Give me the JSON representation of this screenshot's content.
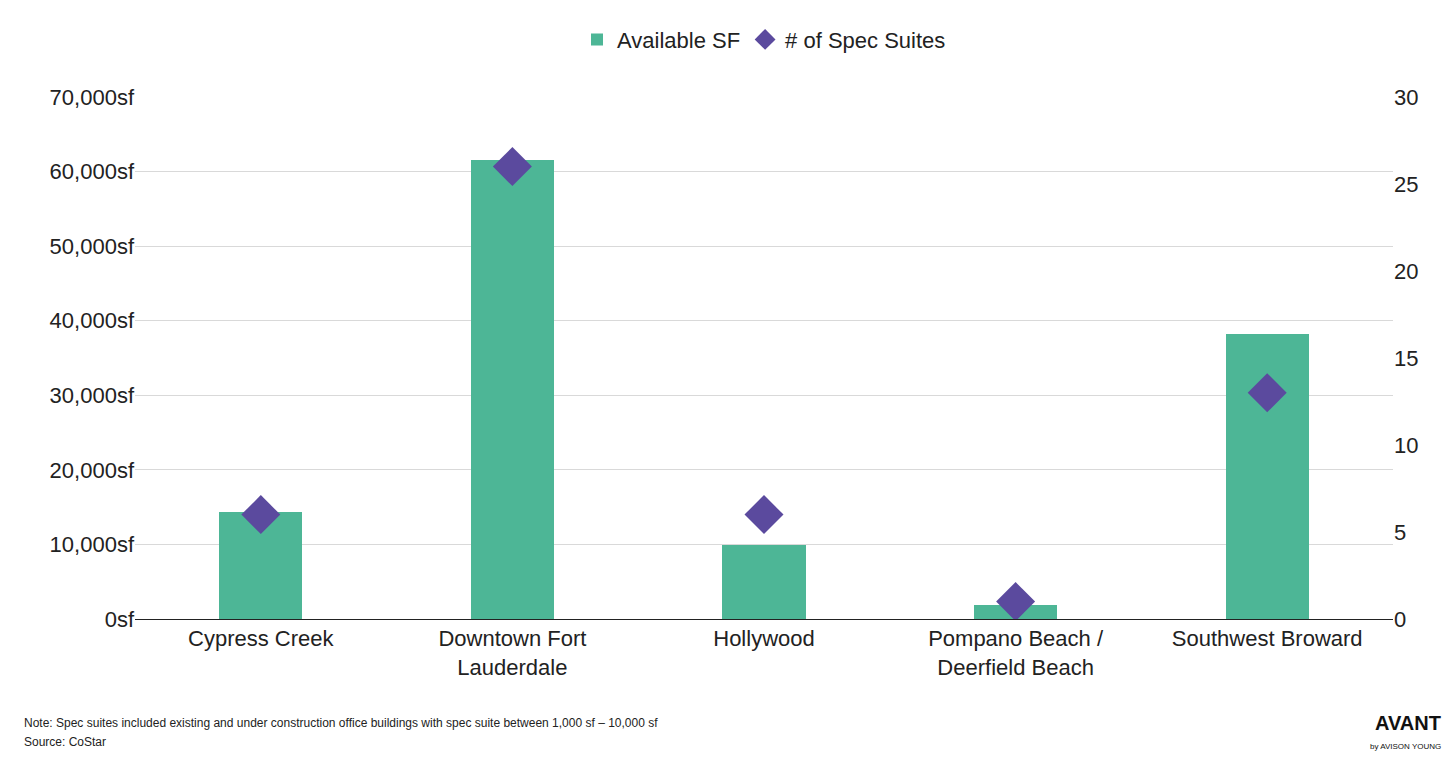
{
  "chart_data": {
    "type": "bar",
    "categories": [
      "Cypress Creek",
      "Downtown Fort Lauderdale",
      "Hollywood",
      "Pompano Beach / Deerfield Beach",
      "Southwest Broward"
    ],
    "series": [
      {
        "name": "Available SF",
        "type": "bar",
        "color": "#4db696",
        "values": [
          14350,
          61500,
          9950,
          1900,
          38250
        ]
      },
      {
        "name": "# of Spec Suites",
        "type": "scatter",
        "marker": "diamond",
        "color": "#5b4a9e",
        "axis": "y2",
        "values": [
          6,
          26,
          6,
          1,
          13
        ]
      }
    ],
    "ylim": [
      0,
      70000
    ],
    "yticks": [
      {
        "value": 0,
        "label": "0sf"
      },
      {
        "value": 10000,
        "label": "10,000sf"
      },
      {
        "value": 20000,
        "label": "20,000sf"
      },
      {
        "value": 30000,
        "label": "30,000sf"
      },
      {
        "value": 40000,
        "label": "40,000sf"
      },
      {
        "value": 50000,
        "label": "50,000sf"
      },
      {
        "value": 60000,
        "label": "60,000sf"
      },
      {
        "value": 70000,
        "label": "70,000sf"
      }
    ],
    "y2lim": [
      0,
      30
    ],
    "y2ticks": [
      0,
      5,
      10,
      15,
      20,
      25,
      30
    ],
    "grid": true,
    "legend": "top",
    "annotations": [
      "Note: Spec suites included existing and under construction office buildings with spec suite between 1,000 sf – 10,000 sf",
      "Source: CoStar",
      "AVANT",
      "by AVISON YOUNG"
    ]
  }
}
